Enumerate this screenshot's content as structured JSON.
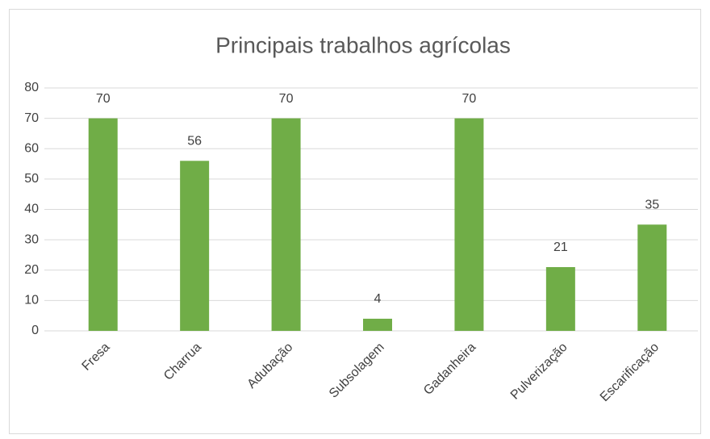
{
  "chart_data": {
    "type": "bar",
    "title": "Principais trabalhos agrícolas",
    "categories": [
      "Fresa",
      "Charrua",
      "Adubação",
      "Subsolagem",
      "Gadanheira",
      "Pulverização",
      "Escarificação"
    ],
    "values": [
      70,
      56,
      70,
      4,
      70,
      21,
      35
    ],
    "color": "#70ad47",
    "ylim": [
      0,
      80
    ],
    "yticks": [
      0,
      10,
      20,
      30,
      40,
      50,
      60,
      70,
      80
    ],
    "grid": true,
    "data_labels": true
  }
}
